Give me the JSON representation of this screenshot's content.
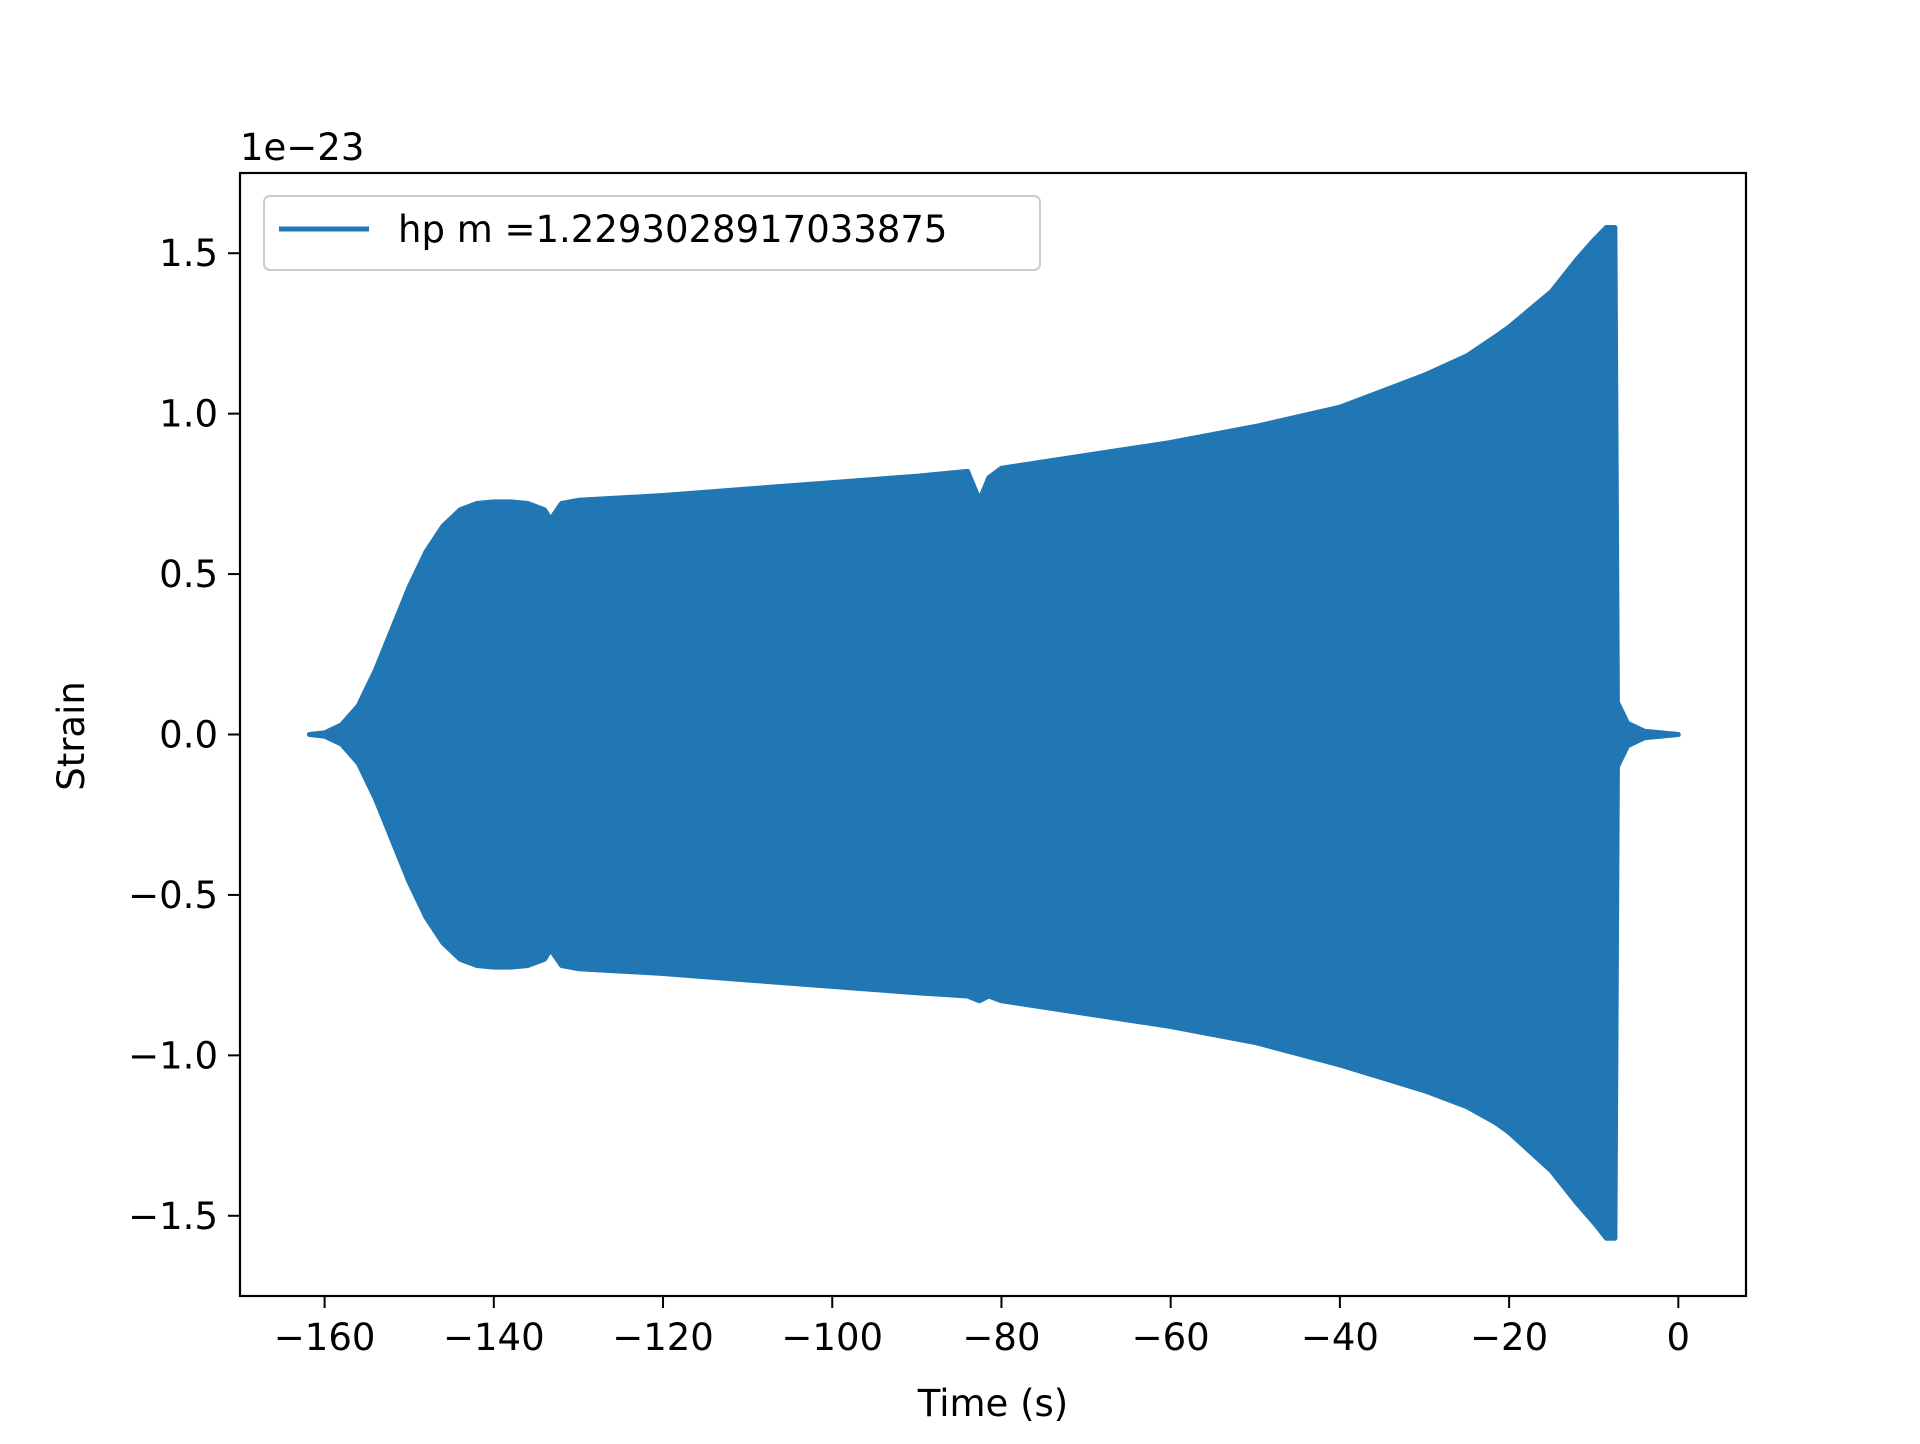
{
  "chart_data": {
    "type": "line",
    "title": "",
    "xlabel": "Time (s)",
    "ylabel": "Strain",
    "offset_text": "1e−23",
    "xlim": [
      -170,
      8
    ],
    "ylim": [
      -1.75,
      1.75
    ],
    "xticks": [
      -160,
      -140,
      -120,
      -100,
      -80,
      -60,
      -40,
      -20,
      0
    ],
    "xtick_labels": [
      "−160",
      "−140",
      "−120",
      "−100",
      "−80",
      "−60",
      "−40",
      "−20",
      "0"
    ],
    "yticks": [
      -1.5,
      -1.0,
      -0.5,
      0.0,
      0.5,
      1.0,
      1.5
    ],
    "ytick_labels": [
      "−1.5",
      "−1.0",
      "−0.5",
      "0.0",
      "0.5",
      "1.0",
      "1.5"
    ],
    "grid": false,
    "legend": {
      "position": "top-left",
      "entries": [
        "hp m =1.2293028917033875"
      ]
    },
    "series": [
      {
        "name": "hp m =1.2293028917033875",
        "color": "#2077b4",
        "render": "oscillating strain, filled between upper and lower envelope",
        "x": [
          -161.8,
          -160,
          -158,
          -156,
          -154,
          -152,
          -150,
          -148,
          -146,
          -144,
          -142,
          -140,
          -138,
          -136,
          -134,
          -133.3,
          -132,
          -130,
          -120,
          -110,
          -100,
          -90,
          -84,
          -82.6,
          -81.5,
          -80,
          -70,
          -60,
          -50,
          -40,
          -30,
          -25,
          -21.6,
          -20,
          -15,
          -12,
          -10,
          -8.5,
          -7.5,
          -7.2,
          -6,
          -4,
          -2,
          0
        ],
        "upper": [
          0.0,
          0.005,
          0.03,
          0.09,
          0.2,
          0.33,
          0.46,
          0.57,
          0.65,
          0.7,
          0.72,
          0.725,
          0.725,
          0.72,
          0.7,
          0.67,
          0.72,
          0.73,
          0.745,
          0.765,
          0.785,
          0.805,
          0.82,
          0.73,
          0.8,
          0.83,
          0.87,
          0.91,
          0.96,
          1.02,
          1.12,
          1.18,
          1.24,
          1.27,
          1.38,
          1.48,
          1.54,
          1.58,
          1.58,
          0.1,
          0.035,
          0.01,
          0.005,
          0.0
        ],
        "lower": [
          0.0,
          -0.005,
          -0.03,
          -0.09,
          -0.2,
          -0.33,
          -0.46,
          -0.57,
          -0.65,
          -0.7,
          -0.72,
          -0.725,
          -0.725,
          -0.72,
          -0.7,
          -0.67,
          -0.72,
          -0.73,
          -0.745,
          -0.765,
          -0.785,
          -0.805,
          -0.815,
          -0.83,
          -0.815,
          -0.83,
          -0.87,
          -0.91,
          -0.96,
          -1.03,
          -1.11,
          -1.16,
          -1.21,
          -1.24,
          -1.36,
          -1.46,
          -1.52,
          -1.57,
          -1.57,
          -0.1,
          -0.035,
          -0.01,
          -0.005,
          0.0
        ]
      }
    ]
  }
}
